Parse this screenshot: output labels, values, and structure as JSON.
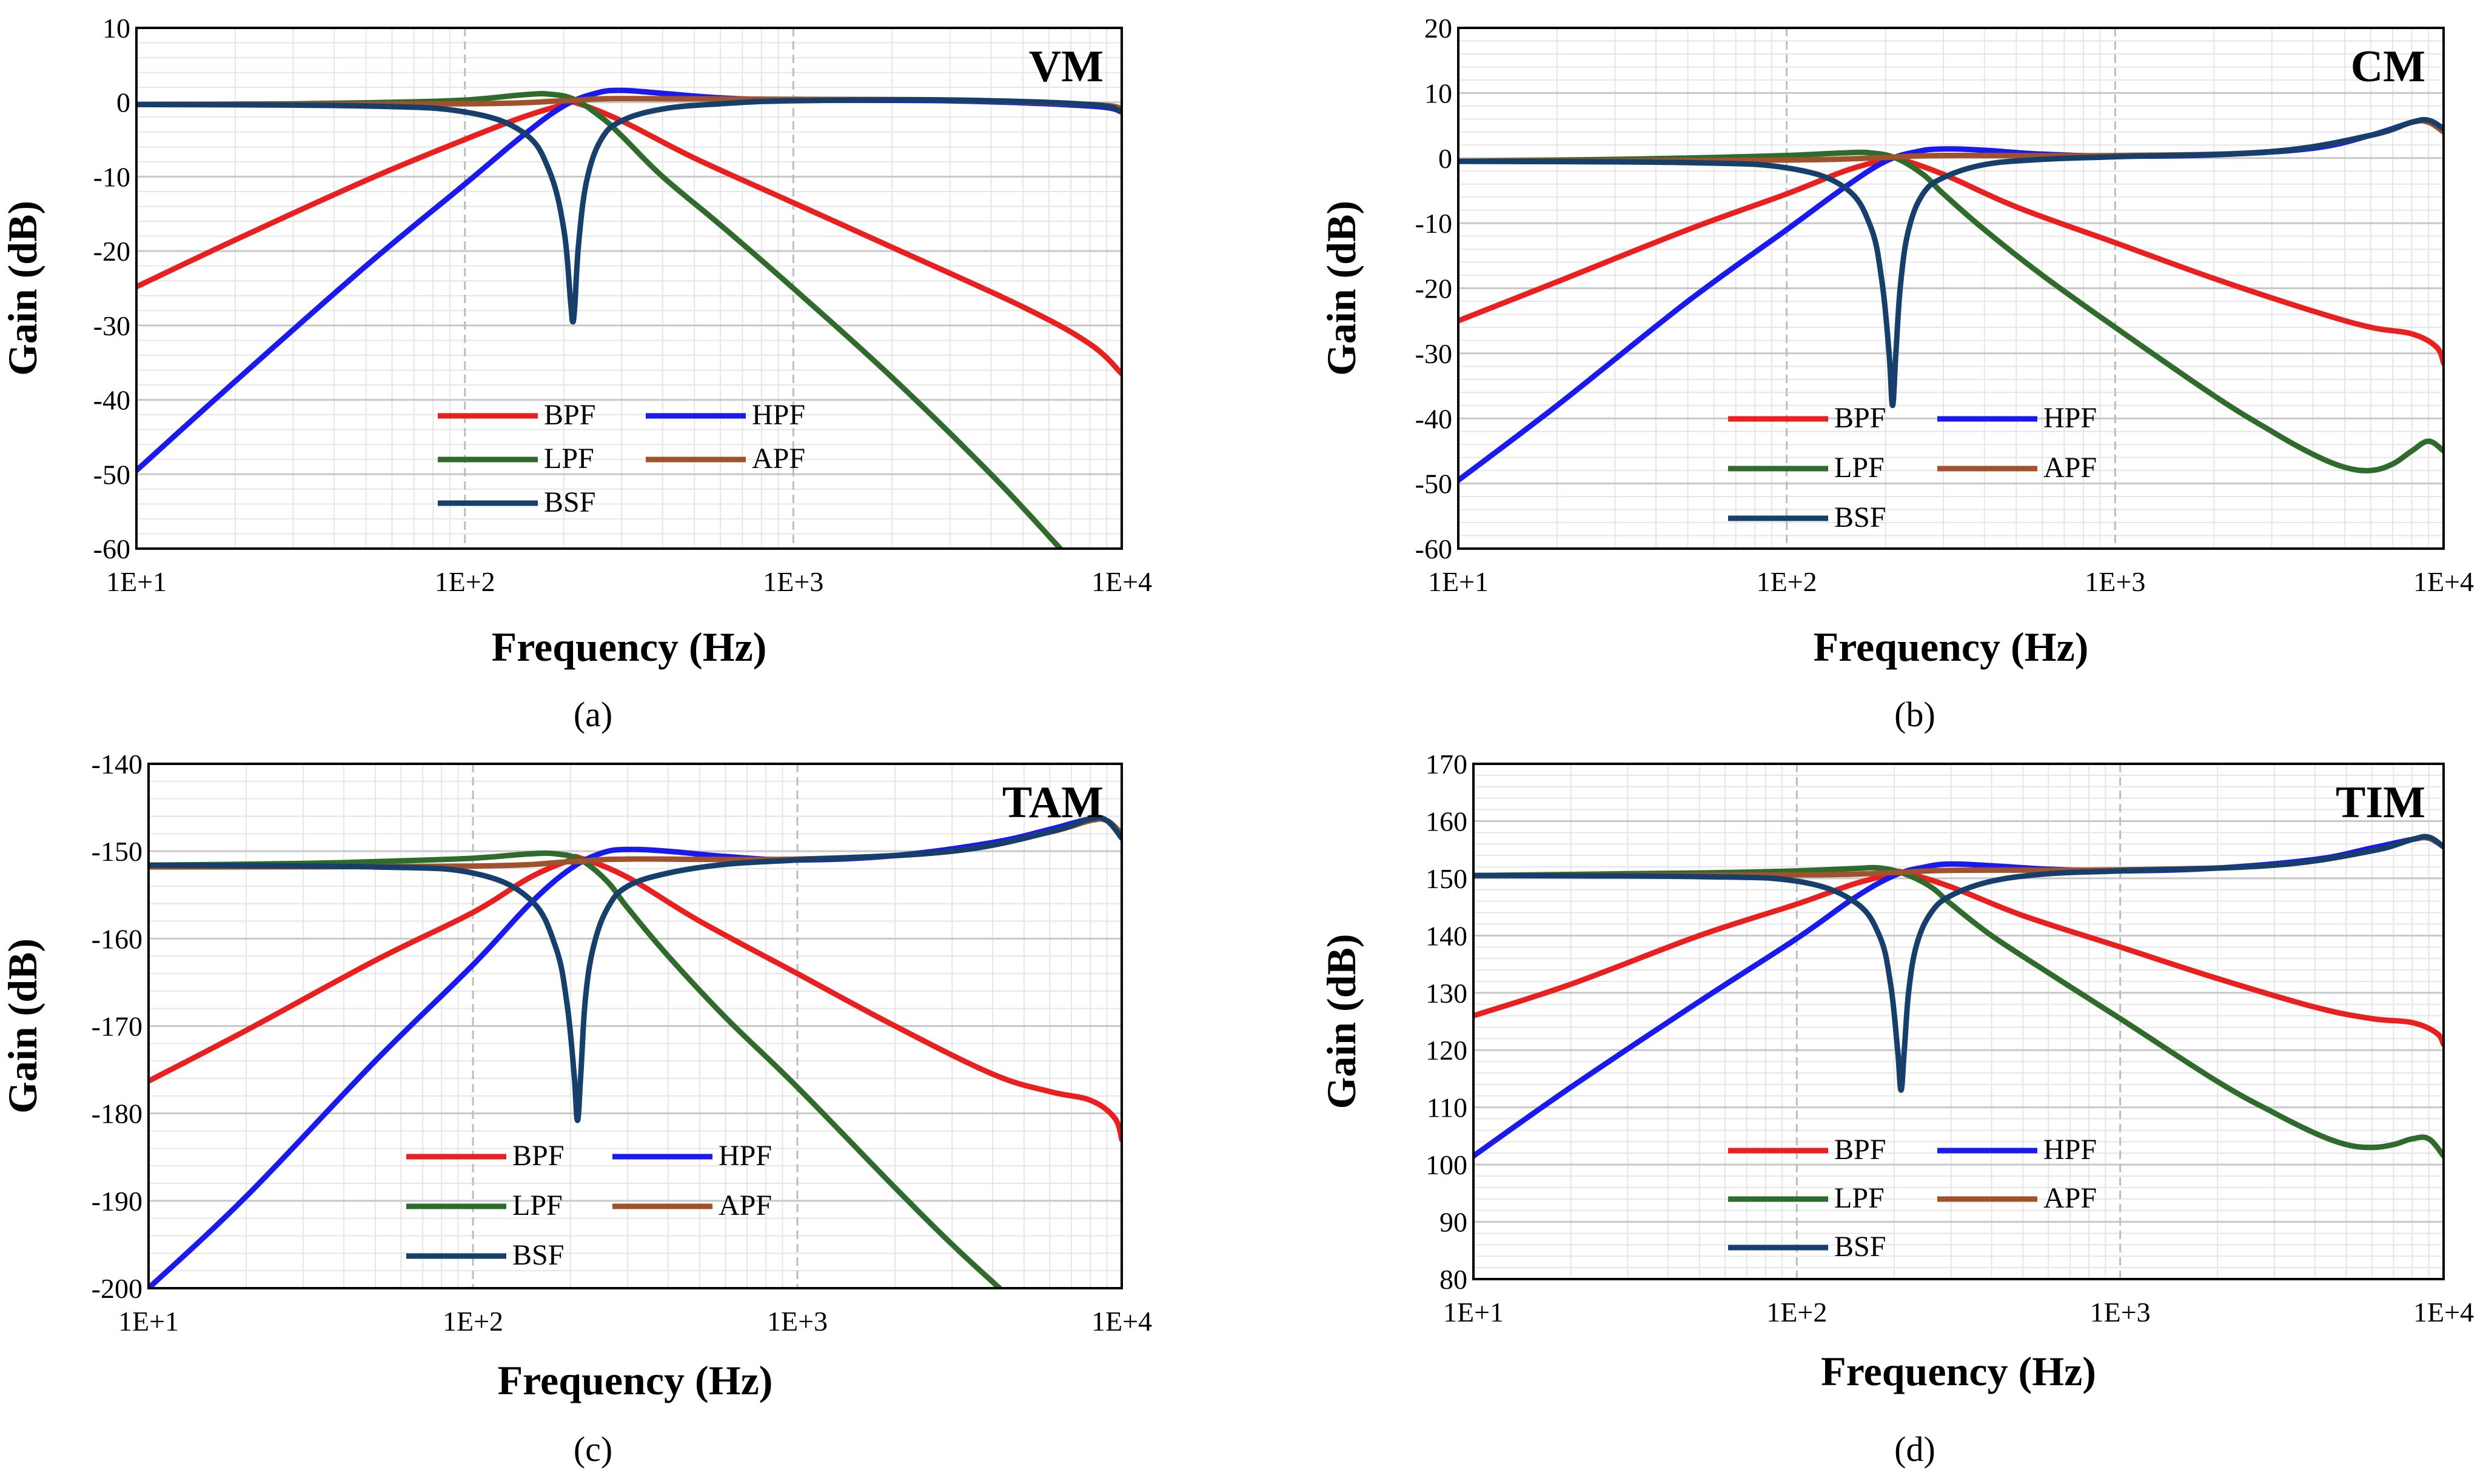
{
  "figure": {
    "legend_labels": [
      "BPF",
      "HPF",
      "LPF",
      "APF",
      "BSF"
    ]
  },
  "colors": {
    "BPF": "#e8201f",
    "HPF": "#1a1aee",
    "LPF": "#2f6b2a",
    "APF": "#a0522d",
    "BSF": "#16406b",
    "major_grid": "#c8c8c8",
    "minor_grid": "#e6e6e6",
    "decade_grid": "#bdbdbd"
  },
  "chart_data": [
    {
      "type": "line",
      "id": "a",
      "caption": "(a)",
      "mode_label": "VM",
      "xlabel": "Frequency (Hz)",
      "ylabel": "Gain (dB)",
      "xscale": "log",
      "xlim": [
        10,
        10000
      ],
      "xticks": [
        10,
        100,
        1000,
        10000
      ],
      "xtick_labels": [
        "1E+1",
        "1E+2",
        "1E+3",
        "1E+4"
      ],
      "ylim": [
        -60,
        10
      ],
      "yticks": [
        -60,
        -50,
        -40,
        -30,
        -20,
        -10,
        0,
        10
      ],
      "ytick_labels": [
        "-60",
        "-50",
        "-40",
        "-30",
        "-20",
        "-10",
        "0",
        "10"
      ],
      "series": [
        {
          "name": "BPF",
          "x": [
            10,
            20,
            50,
            100,
            150,
            200,
            215,
            300,
            500,
            1000,
            2000,
            5000,
            8000,
            10000
          ],
          "y": [
            -24.8,
            -18.5,
            -10.5,
            -5.0,
            -2.0,
            -0.3,
            0,
            -2.5,
            -7.5,
            -13.5,
            -19.5,
            -27.5,
            -32.5,
            -36.5
          ]
        },
        {
          "name": "HPF",
          "x": [
            10,
            20,
            50,
            100,
            150,
            200,
            250,
            300,
            400,
            600,
            1000,
            3000,
            8000,
            10000
          ],
          "y": [
            -49.5,
            -37.5,
            -22.0,
            -11.0,
            -4.5,
            -0.5,
            1.2,
            1.6,
            1.2,
            0.6,
            0.3,
            0.2,
            -0.5,
            -1.3
          ]
        },
        {
          "name": "LPF",
          "x": [
            10,
            30,
            60,
            100,
            150,
            180,
            215,
            260,
            300,
            400,
            600,
            1000,
            2000,
            4000,
            6500
          ],
          "y": [
            -0.3,
            -0.2,
            0.0,
            0.3,
            1.0,
            1.1,
            0.4,
            -2.0,
            -4.5,
            -10.0,
            -16.5,
            -25.0,
            -37.0,
            -50.0,
            -60.0
          ]
        },
        {
          "name": "APF",
          "x": [
            10,
            100,
            200,
            300,
            1000,
            3000,
            8000,
            10000
          ],
          "y": [
            -0.3,
            -0.2,
            0.2,
            0.5,
            0.4,
            0.3,
            -0.3,
            -0.8
          ]
        },
        {
          "name": "BSF",
          "x": [
            10,
            50,
            100,
            150,
            180,
            200,
            210,
            213,
            216,
            222,
            235,
            260,
            300,
            400,
            600,
            1000,
            3000,
            8000,
            10000
          ],
          "y": [
            -0.3,
            -0.5,
            -1.3,
            -4.0,
            -9.0,
            -17.0,
            -27.0,
            -29.5,
            -27.5,
            -19.0,
            -10.5,
            -5.0,
            -2.5,
            -0.9,
            -0.2,
            0.2,
            0.3,
            -0.3,
            -1.3
          ]
        }
      ]
    },
    {
      "type": "line",
      "id": "b",
      "caption": "(b)",
      "mode_label": "CM",
      "xlabel": "Frequency (Hz)",
      "ylabel": "Gain (dB)",
      "xscale": "log",
      "xlim": [
        10,
        10000
      ],
      "xticks": [
        10,
        100,
        1000,
        10000
      ],
      "xtick_labels": [
        "1E+1",
        "1E+2",
        "1E+3",
        "1E+4"
      ],
      "ylim": [
        -60,
        20
      ],
      "yticks": [
        -60,
        -50,
        -40,
        -30,
        -20,
        -10,
        0,
        10,
        20
      ],
      "ytick_labels": [
        "-60",
        "-50",
        "-40",
        "-30",
        "-20",
        "-10",
        "0",
        "10",
        "20"
      ],
      "series": [
        {
          "name": "BPF",
          "x": [
            10,
            20,
            50,
            100,
            150,
            200,
            215,
            300,
            500,
            1000,
            2000,
            4000,
            6000,
            8000,
            9500,
            10000
          ],
          "y": [
            -25.0,
            -19.0,
            -11.0,
            -5.5,
            -2.0,
            -0.2,
            0,
            -2.5,
            -7.5,
            -13.0,
            -18.5,
            -23.5,
            -26.0,
            -27.0,
            -29.0,
            -31.5
          ]
        },
        {
          "name": "HPF",
          "x": [
            10,
            20,
            50,
            100,
            150,
            200,
            250,
            300,
            400,
            600,
            1000,
            2000,
            4000,
            6000,
            8000,
            9000,
            10000
          ],
          "y": [
            -49.5,
            -38.0,
            -22.0,
            -11.0,
            -4.5,
            -0.5,
            1.0,
            1.4,
            1.2,
            0.6,
            0.3,
            0.5,
            1.5,
            3.5,
            5.5,
            5.8,
            4.5
          ]
        },
        {
          "name": "LPF",
          "x": [
            10,
            30,
            60,
            100,
            150,
            180,
            215,
            260,
            300,
            400,
            600,
            1000,
            2000,
            3000,
            4000,
            5000,
            6000,
            7000,
            8000,
            9000,
            10000
          ],
          "y": [
            -0.5,
            -0.2,
            0.1,
            0.4,
            0.8,
            0.8,
            0.0,
            -2.5,
            -5.5,
            -11.0,
            -18.0,
            -26.0,
            -36.5,
            -42.0,
            -45.5,
            -47.5,
            -48.0,
            -47.0,
            -45.0,
            -43.5,
            -45.0
          ]
        },
        {
          "name": "APF",
          "x": [
            10,
            100,
            200,
            300,
            1000,
            3000,
            6000,
            8000,
            9000,
            10000
          ],
          "y": [
            -0.5,
            -0.3,
            0.1,
            0.4,
            0.4,
            1.0,
            3.5,
            5.5,
            5.5,
            4.0
          ]
        },
        {
          "name": "BSF",
          "x": [
            10,
            50,
            100,
            150,
            180,
            195,
            205,
            210,
            215,
            222,
            235,
            260,
            300,
            400,
            600,
            1000,
            3000,
            6000,
            8000,
            9000,
            10000
          ],
          "y": [
            -0.5,
            -0.7,
            -1.5,
            -4.5,
            -10.5,
            -19.0,
            -30.0,
            -38.0,
            -30.0,
            -19.5,
            -11.0,
            -5.5,
            -3.0,
            -1.0,
            -0.2,
            0.2,
            1.0,
            3.5,
            5.5,
            5.8,
            4.5
          ]
        }
      ]
    },
    {
      "type": "line",
      "id": "c",
      "caption": "(c)",
      "mode_label": "TAM",
      "xlabel": "Frequency (Hz)",
      "ylabel": "Gain (dB)",
      "xscale": "log",
      "xlim": [
        10,
        10000
      ],
      "xticks": [
        10,
        100,
        1000,
        10000
      ],
      "xtick_labels": [
        "1E+1",
        "1E+2",
        "1E+3",
        "1E+4"
      ],
      "ylim": [
        -200,
        -140
      ],
      "yticks": [
        -200,
        -190,
        -180,
        -170,
        -160,
        -150,
        -140
      ],
      "ytick_labels": [
        "-200",
        "-190",
        "-180",
        "-170",
        "-160",
        "-150",
        "-140"
      ],
      "series": [
        {
          "name": "BPF",
          "x": [
            10,
            20,
            50,
            100,
            150,
            200,
            215,
            300,
            500,
            1000,
            2000,
            4000,
            6000,
            8000,
            9500,
            10000
          ],
          "y": [
            -176.3,
            -170.5,
            -162.5,
            -157.0,
            -153.0,
            -151.0,
            -150.8,
            -153.0,
            -158.0,
            -164.0,
            -170.0,
            -175.5,
            -177.5,
            -178.5,
            -180.5,
            -183.0
          ]
        },
        {
          "name": "HPF",
          "x": [
            10,
            20,
            50,
            100,
            150,
            200,
            250,
            300,
            400,
            600,
            1000,
            2000,
            4000,
            6000,
            8000,
            9000,
            10000
          ],
          "y": [
            -200.0,
            -189.5,
            -174.0,
            -163.0,
            -156.0,
            -152.0,
            -150.2,
            -149.8,
            -150.0,
            -150.6,
            -151.0,
            -150.5,
            -149.0,
            -147.5,
            -146.3,
            -146.5,
            -148.5
          ]
        },
        {
          "name": "LPF",
          "x": [
            10,
            30,
            60,
            100,
            150,
            180,
            215,
            260,
            300,
            400,
            600,
            1000,
            2000,
            3000,
            4200
          ],
          "y": [
            -151.6,
            -151.4,
            -151.1,
            -150.8,
            -150.3,
            -150.3,
            -151.0,
            -153.5,
            -156.5,
            -162.0,
            -169.0,
            -177.0,
            -188.5,
            -195.0,
            -200.0
          ]
        },
        {
          "name": "APF",
          "x": [
            10,
            100,
            200,
            300,
            1000,
            3000,
            6000,
            8000,
            9000,
            10000
          ],
          "y": [
            -151.8,
            -151.7,
            -151.2,
            -150.9,
            -150.9,
            -150.0,
            -147.8,
            -146.5,
            -146.5,
            -148.0
          ]
        },
        {
          "name": "BSF",
          "x": [
            10,
            50,
            100,
            150,
            180,
            195,
            205,
            210,
            215,
            222,
            235,
            260,
            300,
            400,
            600,
            1000,
            3000,
            6000,
            8000,
            9000,
            10000
          ],
          "y": [
            -151.6,
            -151.8,
            -152.5,
            -155.5,
            -161.0,
            -167.5,
            -175.5,
            -180.8,
            -175.5,
            -167.0,
            -161.0,
            -156.5,
            -154.0,
            -152.5,
            -151.5,
            -151.0,
            -150.0,
            -147.8,
            -146.3,
            -146.5,
            -148.5
          ]
        }
      ]
    },
    {
      "type": "line",
      "id": "d",
      "caption": "(d)",
      "mode_label": "TIM",
      "xlabel": "Frequency (Hz)",
      "ylabel": "Gain (dB)",
      "xscale": "log",
      "xlim": [
        10,
        10000
      ],
      "xticks": [
        10,
        100,
        1000,
        10000
      ],
      "xtick_labels": [
        "1E+1",
        "1E+2",
        "1E+3",
        "1E+4"
      ],
      "ylim": [
        80,
        170
      ],
      "yticks": [
        80,
        90,
        100,
        110,
        120,
        130,
        140,
        150,
        160,
        170
      ],
      "ytick_labels": [
        "80",
        "90",
        "100",
        "110",
        "120",
        "130",
        "140",
        "150",
        "160",
        "170"
      ],
      "series": [
        {
          "name": "BPF",
          "x": [
            10,
            20,
            50,
            100,
            150,
            200,
            215,
            300,
            500,
            1000,
            2000,
            4000,
            6000,
            8000,
            9500,
            10000
          ],
          "y": [
            126.0,
            131.5,
            140.0,
            145.5,
            149.0,
            150.8,
            151.0,
            148.5,
            143.5,
            138.0,
            132.5,
            127.5,
            125.5,
            124.8,
            123.0,
            121.0
          ]
        },
        {
          "name": "HPF",
          "x": [
            10,
            20,
            50,
            100,
            150,
            200,
            250,
            300,
            400,
            600,
            1000,
            2000,
            4000,
            6000,
            8000,
            9000,
            10000
          ],
          "y": [
            101.5,
            113.5,
            128.5,
            139.5,
            146.5,
            150.5,
            152.0,
            152.5,
            152.2,
            151.6,
            151.3,
            151.8,
            153.3,
            155.3,
            156.8,
            157.0,
            155.5
          ]
        },
        {
          "name": "LPF",
          "x": [
            10,
            30,
            60,
            100,
            150,
            180,
            215,
            260,
            300,
            400,
            600,
            1000,
            2000,
            3000,
            4000,
            5000,
            6000,
            7000,
            8000,
            9000,
            10000
          ],
          "y": [
            150.5,
            150.8,
            151.0,
            151.3,
            151.7,
            151.8,
            150.8,
            148.5,
            145.5,
            140.0,
            133.5,
            125.5,
            114.5,
            109.0,
            105.5,
            103.5,
            103.0,
            103.5,
            104.5,
            104.5,
            101.5
          ]
        },
        {
          "name": "APF",
          "x": [
            10,
            100,
            200,
            300,
            1000,
            3000,
            6000,
            8000,
            9000,
            10000
          ],
          "y": [
            150.5,
            150.6,
            151.0,
            151.4,
            151.5,
            152.3,
            154.8,
            156.8,
            157.0,
            155.5
          ]
        },
        {
          "name": "BSF",
          "x": [
            10,
            50,
            100,
            150,
            180,
            195,
            205,
            210,
            215,
            222,
            235,
            260,
            300,
            400,
            600,
            1000,
            3000,
            6000,
            8000,
            9000,
            10000
          ],
          "y": [
            150.5,
            150.3,
            149.5,
            146.0,
            140.0,
            131.5,
            120.0,
            113.0,
            120.0,
            130.5,
            138.5,
            144.0,
            147.0,
            149.5,
            150.8,
            151.3,
            152.3,
            154.8,
            156.8,
            157.2,
            155.5
          ]
        }
      ]
    }
  ]
}
